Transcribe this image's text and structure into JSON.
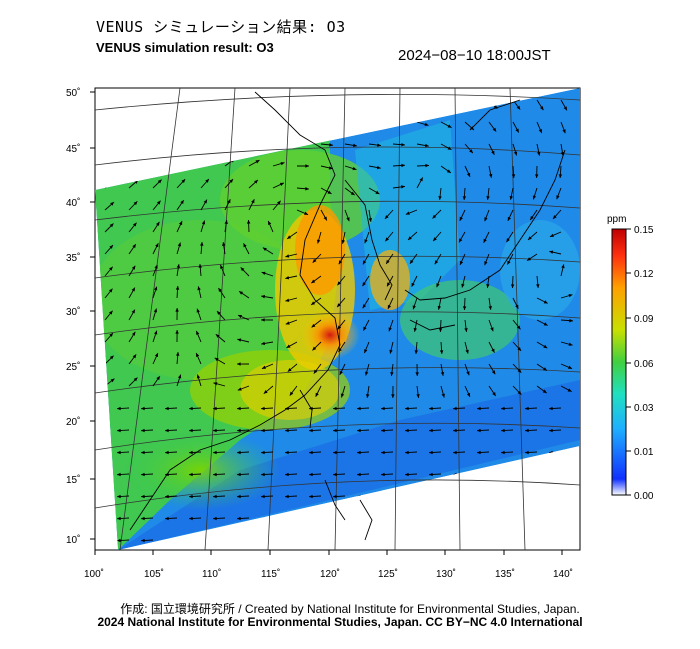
{
  "header": {
    "title_jp": "VENUS シミュレーション結果: O3",
    "title_en": "VENUS simulation result: O3",
    "timestamp": "2024−08−10 18:00JST"
  },
  "map": {
    "lat_labels": [
      "50˚",
      "45˚",
      "40˚",
      "35˚",
      "30˚",
      "25˚",
      "20˚",
      "15˚",
      "10˚"
    ],
    "lon_labels": [
      "100˚",
      "105˚",
      "110˚",
      "115˚",
      "120˚",
      "125˚",
      "130˚",
      "135˚",
      "140˚"
    ],
    "lat_range": [
      9,
      51
    ],
    "lon_range": [
      100,
      141
    ],
    "colors": {
      "ocean_low": "#1f6fe0",
      "mid": "#33cc66",
      "high": "#ffcc00",
      "peak": "#e02010"
    }
  },
  "colorbar": {
    "unit": "ppm",
    "ticks": [
      "0.15",
      "0.12",
      "0.09",
      "0.06",
      "0.03",
      "0.01",
      "0.00"
    ],
    "stops": [
      "#ffffff",
      "#1030ff",
      "#1fb0ff",
      "#20e0c0",
      "#40d040",
      "#c8e000",
      "#ffa000",
      "#ff3010",
      "#c00000"
    ]
  },
  "footer": {
    "credit_line1": "作成: 国立環境研究所 / Created by National Institute for Environmental Studies, Japan.",
    "credit_line2": "2024 National Institute for Environmental Studies, Japan. CC BY−NC 4.0 International"
  }
}
